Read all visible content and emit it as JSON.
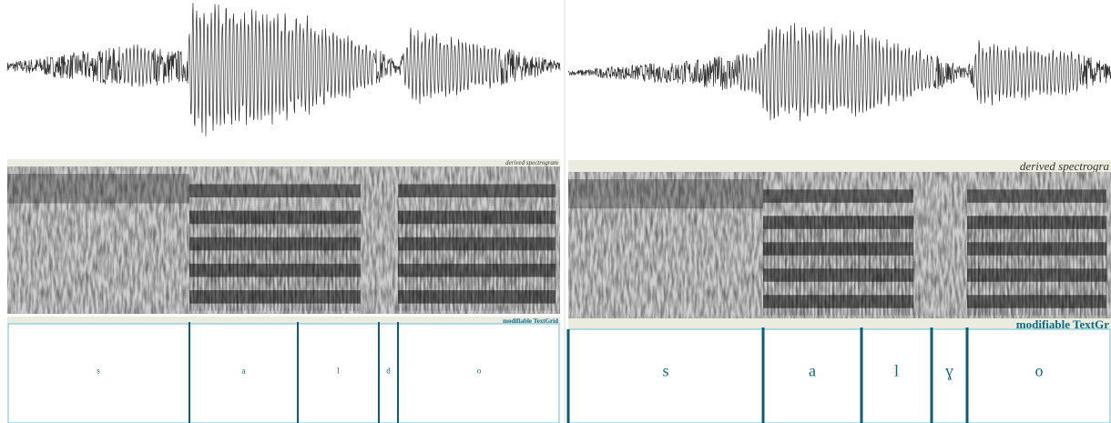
{
  "panels": [
    {
      "spectrogram_label": "derived spectrogram",
      "textgrid_label": "modifiable TextGrid",
      "intervals": [
        "s",
        "a",
        "l",
        "d",
        "o"
      ]
    },
    {
      "spectrogram_label": "derived spectrogra",
      "textgrid_label": "modifiable TextGr",
      "intervals": [
        "s",
        "a",
        "l",
        "ɣ",
        "o"
      ]
    }
  ]
}
